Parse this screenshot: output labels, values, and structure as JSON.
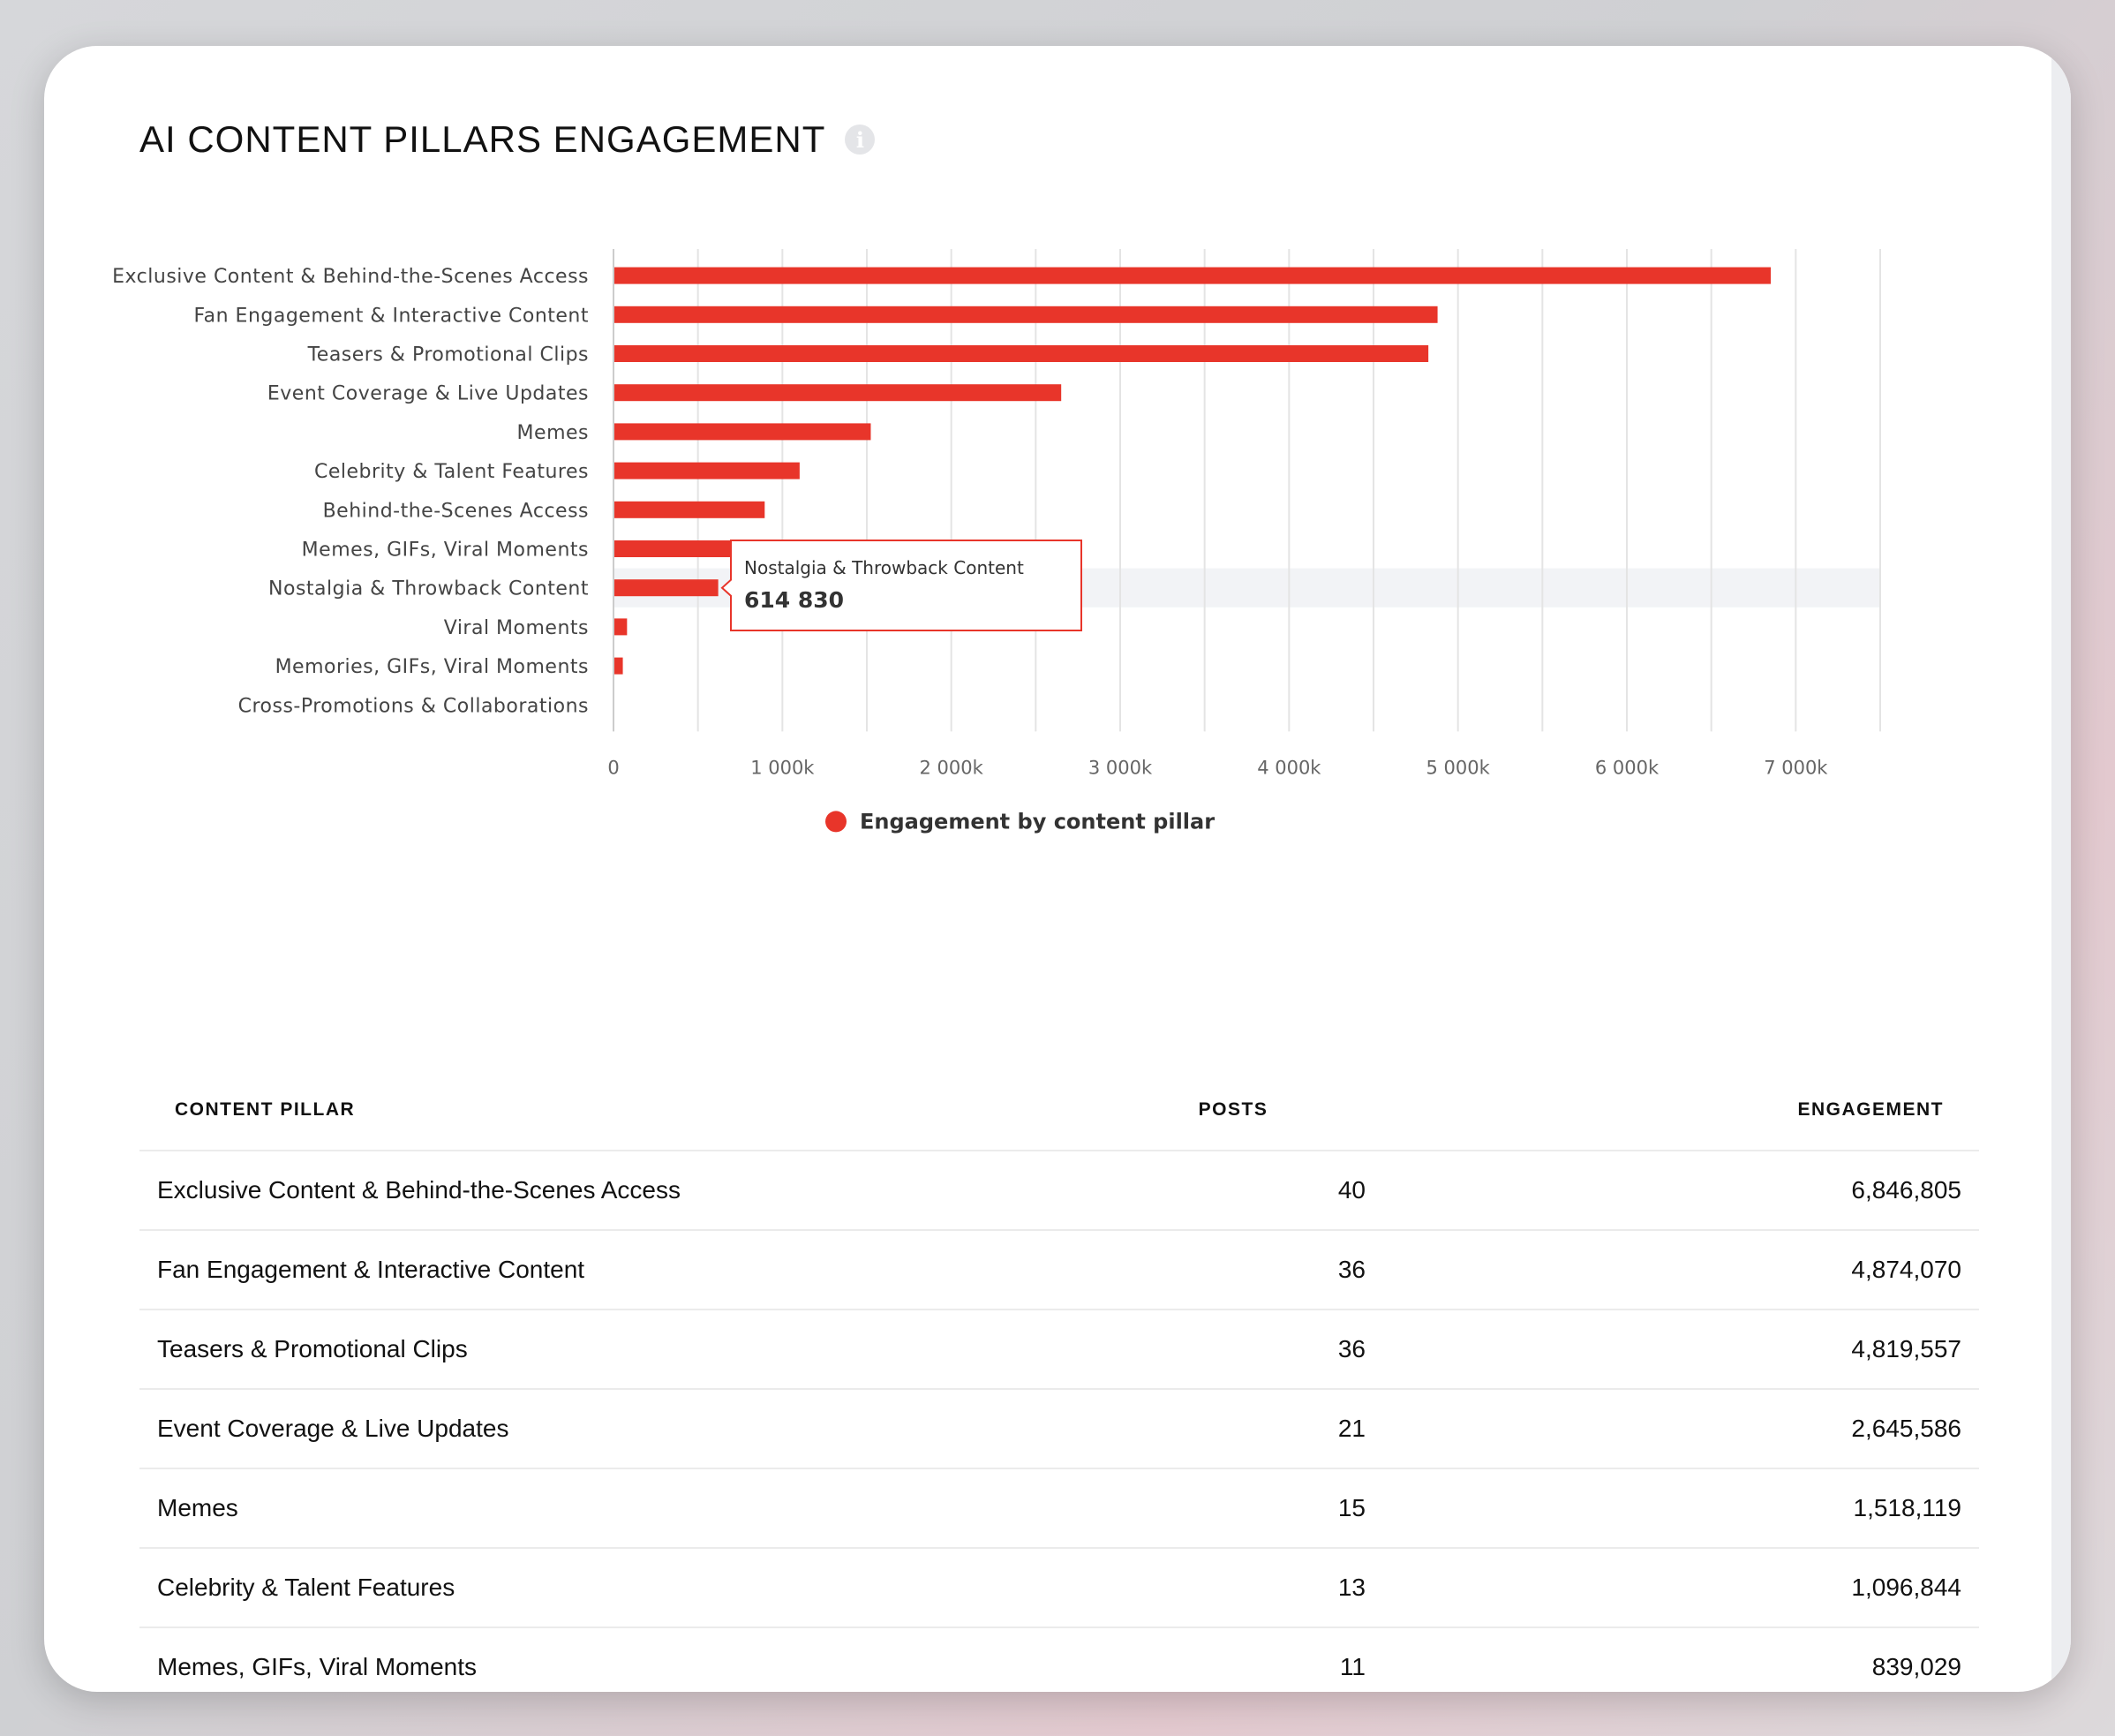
{
  "header": {
    "title": "AI CONTENT PILLARS ENGAGEMENT",
    "info_icon": "info-icon"
  },
  "chart_data": {
    "type": "bar",
    "orientation": "horizontal",
    "categories": [
      "Exclusive Content & Behind-the-Scenes Access",
      "Fan Engagement & Interactive Content",
      "Teasers & Promotional Clips",
      "Event Coverage & Live Updates",
      "Memes",
      "Celebrity & Talent Features",
      "Behind-the-Scenes Access",
      "Memes, GIFs, Viral Moments",
      "Nostalgia & Throwback Content",
      "Viral Moments",
      "Memories, GIFs, Viral Moments",
      "Cross-Promotions & Collaborations"
    ],
    "series": [
      {
        "name": "Engagement by content pillar",
        "values": [
          6846805,
          4874070,
          4819557,
          2645586,
          1518119,
          1096844,
          890000,
          839029,
          614830,
          75000,
          50000,
          0
        ],
        "color": "#e8352a"
      }
    ],
    "x_ticks": [
      "0",
      "1 000k",
      "2 000k",
      "3 000k",
      "4 000k",
      "5 000k",
      "6 000k",
      "7 000k"
    ],
    "xlim": [
      0,
      7500000
    ],
    "grid": true,
    "legend": "bottom-center",
    "tooltip": {
      "category": "Nostalgia & Throwback Content",
      "value_label": "614 830",
      "value": 614830
    }
  },
  "table": {
    "headers": {
      "name": "CONTENT PILLAR",
      "posts": "POSTS",
      "engagement": "ENGAGEMENT"
    },
    "rows": [
      {
        "name": "Exclusive Content & Behind-the-Scenes Access",
        "posts": "40",
        "engagement": "6,846,805"
      },
      {
        "name": "Fan Engagement & Interactive Content",
        "posts": "36",
        "engagement": "4,874,070"
      },
      {
        "name": "Teasers & Promotional Clips",
        "posts": "36",
        "engagement": "4,819,557"
      },
      {
        "name": "Event Coverage & Live Updates",
        "posts": "21",
        "engagement": "2,645,586"
      },
      {
        "name": "Memes",
        "posts": "15",
        "engagement": "1,518,119"
      },
      {
        "name": "Celebrity & Talent Features",
        "posts": "13",
        "engagement": "1,096,844"
      },
      {
        "name": "Memes, GIFs, Viral Moments",
        "posts": "11",
        "engagement": "839,029"
      }
    ]
  }
}
